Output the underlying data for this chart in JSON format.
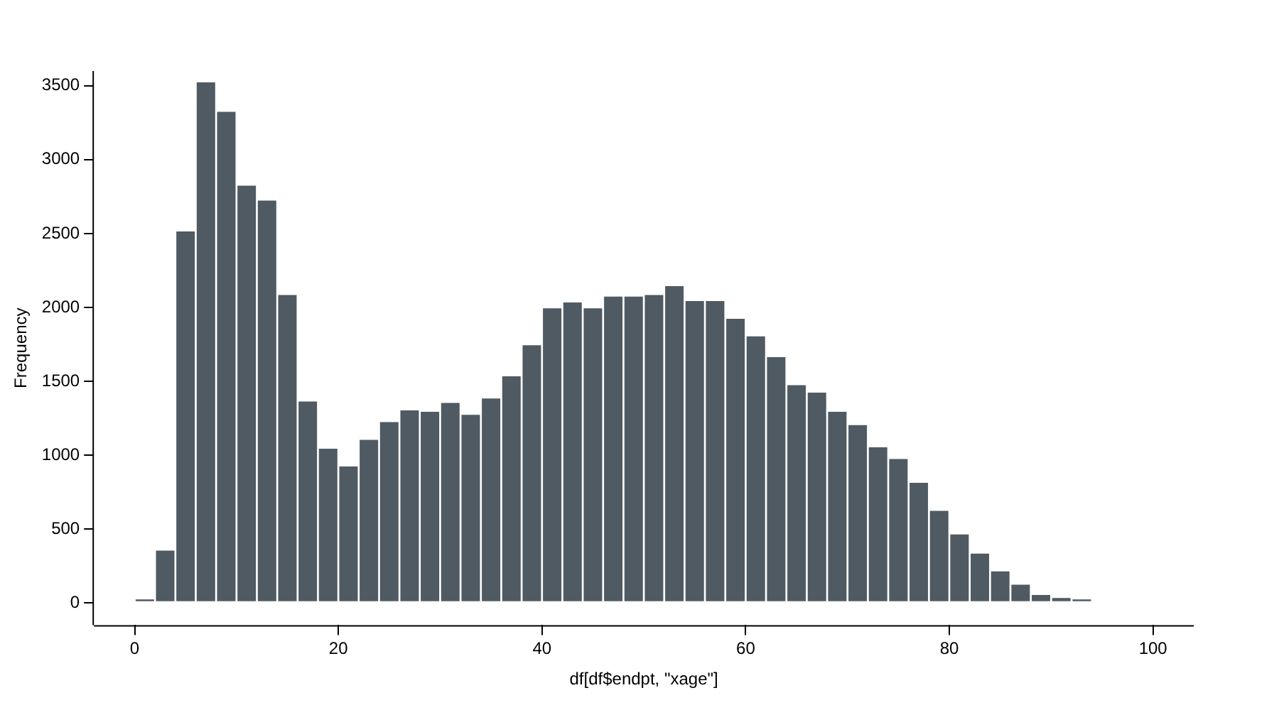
{
  "chart_data": {
    "type": "histogram",
    "xlabel": "df[df$endpt, \"xage\"]",
    "ylabel": "Frequency",
    "color": "#505a62",
    "bins": [
      0,
      2,
      4,
      6,
      8,
      10,
      12,
      14,
      16,
      18,
      20,
      22,
      24,
      26,
      28,
      30,
      32,
      34,
      36,
      38,
      40,
      42,
      44,
      46,
      48,
      50,
      52,
      54,
      56,
      58,
      60,
      62,
      64,
      66,
      68,
      70,
      72,
      74,
      76,
      78,
      80,
      82,
      84,
      86,
      88,
      90,
      92,
      94
    ],
    "values": [
      30,
      360,
      2520,
      3530,
      3330,
      2830,
      2730,
      2090,
      1370,
      1050,
      930,
      1110,
      1230,
      1310,
      1300,
      1360,
      1280,
      1390,
      1540,
      1750,
      2000,
      2040,
      2000,
      2080,
      2080,
      2090,
      2150,
      2050,
      2050,
      1930,
      1810,
      1670,
      1480,
      1430,
      1300,
      1210,
      1060,
      980,
      820,
      630,
      470,
      340,
      220,
      130,
      60,
      40,
      30
    ],
    "xlim": [
      -4,
      104
    ],
    "ylim": [
      -150,
      3600
    ],
    "xticks": [
      0,
      20,
      40,
      60,
      80,
      100
    ],
    "yticks": [
      0,
      500,
      1000,
      1500,
      2000,
      2500,
      3000,
      3500
    ],
    "grid": false,
    "legend": false
  }
}
